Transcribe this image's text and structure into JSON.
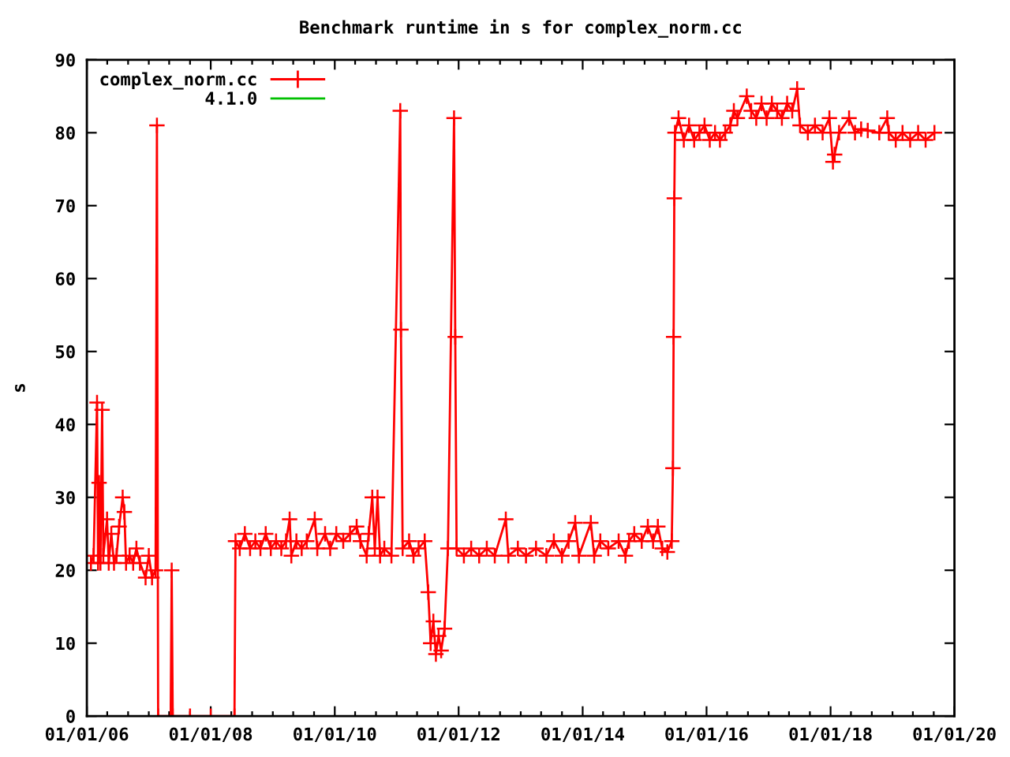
{
  "chart_data": {
    "type": "line",
    "title": "Benchmark runtime in s for complex_norm.cc",
    "ylabel": "s",
    "xlim": [
      "2006-01-01",
      "2020-01-01"
    ],
    "ylim": [
      0,
      90
    ],
    "yticks": [
      0,
      10,
      20,
      30,
      40,
      50,
      60,
      70,
      80,
      90
    ],
    "xticks": [
      {
        "value": "2006-01-01",
        "label": "01/01/06"
      },
      {
        "value": "2006-05-01",
        "label": null
      },
      {
        "value": "2006-09-01",
        "label": null
      },
      {
        "value": "2007-01-01",
        "label": null
      },
      {
        "value": "2007-05-01",
        "label": null
      },
      {
        "value": "2007-09-01",
        "label": null
      },
      {
        "value": "2008-01-01",
        "label": "01/01/08"
      },
      {
        "value": "2008-05-01",
        "label": null
      },
      {
        "value": "2008-09-01",
        "label": null
      },
      {
        "value": "2009-01-01",
        "label": null
      },
      {
        "value": "2009-05-01",
        "label": null
      },
      {
        "value": "2009-09-01",
        "label": null
      },
      {
        "value": "2010-01-01",
        "label": "01/01/10"
      },
      {
        "value": "2010-05-01",
        "label": null
      },
      {
        "value": "2010-09-01",
        "label": null
      },
      {
        "value": "2011-01-01",
        "label": null
      },
      {
        "value": "2011-05-01",
        "label": null
      },
      {
        "value": "2011-09-01",
        "label": null
      },
      {
        "value": "2012-01-01",
        "label": "01/01/12"
      },
      {
        "value": "2012-05-01",
        "label": null
      },
      {
        "value": "2012-09-01",
        "label": null
      },
      {
        "value": "2013-01-01",
        "label": null
      },
      {
        "value": "2013-05-01",
        "label": null
      },
      {
        "value": "2013-09-01",
        "label": null
      },
      {
        "value": "2014-01-01",
        "label": "01/01/14"
      },
      {
        "value": "2014-05-01",
        "label": null
      },
      {
        "value": "2014-09-01",
        "label": null
      },
      {
        "value": "2015-01-01",
        "label": null
      },
      {
        "value": "2015-05-01",
        "label": null
      },
      {
        "value": "2015-09-01",
        "label": null
      },
      {
        "value": "2016-01-01",
        "label": "01/01/16"
      },
      {
        "value": "2016-05-01",
        "label": null
      },
      {
        "value": "2016-09-01",
        "label": null
      },
      {
        "value": "2017-01-01",
        "label": null
      },
      {
        "value": "2017-05-01",
        "label": null
      },
      {
        "value": "2017-09-01",
        "label": null
      },
      {
        "value": "2018-01-01",
        "label": "01/01/18"
      },
      {
        "value": "2018-05-01",
        "label": null
      },
      {
        "value": "2018-09-01",
        "label": null
      },
      {
        "value": "2019-01-01",
        "label": null
      },
      {
        "value": "2019-05-01",
        "label": null
      },
      {
        "value": "2019-09-01",
        "label": null
      },
      {
        "value": "2020-01-01",
        "label": "01/01/20"
      }
    ],
    "legend": "top left",
    "marker": "cross",
    "line_style": "solid",
    "series": [
      {
        "name": "complex_norm.cc",
        "color": "#ff0000",
        "x": [
          "2006-01-25",
          "2006-02-10",
          "2006-03-02",
          "2006-03-08",
          "2006-03-14",
          "2006-03-22",
          "2006-04-01",
          "2006-04-08",
          "2006-04-30",
          "2006-05-10",
          "2006-05-25",
          "2006-06-10",
          "2006-06-25",
          "2006-07-10",
          "2006-07-31",
          "2006-08-10",
          "2006-08-20",
          "2006-09-10",
          "2006-10-01",
          "2006-10-20",
          "2006-11-10",
          "2006-12-13",
          "2007-01-01",
          "2007-01-20",
          "2007-02-10",
          "2007-02-18",
          "2007-02-25",
          "2007-05-10",
          "2007-05-16",
          "2007-05-22",
          "2007-09-01",
          "2008-01-01",
          "2008-05-20",
          "2008-05-26",
          "2008-06-20",
          "2008-07-20",
          "2008-08-20",
          "2008-09-20",
          "2008-10-20",
          "2008-11-20",
          "2008-12-20",
          "2009-01-20",
          "2009-02-20",
          "2009-03-20",
          "2009-04-10",
          "2009-04-20",
          "2009-05-20",
          "2009-06-20",
          "2009-07-20",
          "2009-09-05",
          "2009-09-20",
          "2009-11-05",
          "2009-12-05",
          "2010-01-10",
          "2010-02-20",
          "2010-04-01",
          "2010-05-10",
          "2010-06-01",
          "2010-07-08",
          "2010-07-20",
          "2010-08-10",
          "2010-08-25",
          "2010-09-10",
          "2010-09-25",
          "2010-10-20",
          "2010-12-01",
          "2011-01-22",
          "2011-01-26",
          "2011-02-05",
          "2011-03-15",
          "2011-04-10",
          "2011-05-10",
          "2011-06-15",
          "2011-07-06",
          "2011-07-20",
          "2011-08-05",
          "2011-08-20",
          "2011-09-05",
          "2011-09-20",
          "2011-10-10",
          "2011-10-30",
          "2011-12-05",
          "2011-12-12",
          "2011-12-20",
          "2012-02-01",
          "2012-03-15",
          "2012-05-01",
          "2012-06-15",
          "2012-08-01",
          "2012-10-05",
          "2012-10-20",
          "2012-12-15",
          "2013-02-01",
          "2013-04-01",
          "2013-06-01",
          "2013-07-15",
          "2013-09-01",
          "2013-10-10",
          "2013-11-18",
          "2013-12-10",
          "2014-02-18",
          "2014-03-10",
          "2014-04-15",
          "2014-06-01",
          "2014-08-01",
          "2014-09-10",
          "2014-10-01",
          "2014-11-01",
          "2014-12-15",
          "2015-01-20",
          "2015-02-20",
          "2015-03-20",
          "2015-04-15",
          "2015-05-15",
          "2015-06-10",
          "2015-06-17",
          "2015-06-21",
          "2015-06-25",
          "2015-06-29",
          "2015-07-20",
          "2015-08-20",
          "2015-09-20",
          "2015-10-20",
          "2015-11-20",
          "2015-12-20",
          "2016-01-20",
          "2016-02-20",
          "2016-03-20",
          "2016-04-20",
          "2016-05-20",
          "2016-06-10",
          "2016-07-01",
          "2016-08-25",
          "2016-09-20",
          "2016-10-20",
          "2016-11-20",
          "2016-12-20",
          "2017-01-20",
          "2017-02-20",
          "2017-03-20",
          "2017-04-20",
          "2017-05-20",
          "2017-06-18",
          "2017-07-05",
          "2017-08-20",
          "2017-10-01",
          "2017-11-15",
          "2017-12-25",
          "2018-01-15",
          "2018-01-25",
          "2018-02-20",
          "2018-04-20",
          "2018-05-25",
          "2018-06-30",
          "2018-08-08",
          "2018-10-15",
          "2018-12-01",
          "2018-12-10",
          "2019-01-20",
          "2019-03-01",
          "2019-04-15",
          "2019-06-01",
          "2019-07-15",
          "2019-09-05"
        ],
        "values": [
          21,
          22,
          43,
          21,
          32,
          21,
          42,
          22,
          27,
          21,
          25,
          21,
          22,
          26,
          30,
          28,
          21,
          22,
          21,
          23,
          21,
          19,
          22,
          19,
          20,
          81,
          0,
          0,
          20,
          0,
          0,
          0,
          0,
          24,
          23,
          25,
          23,
          24,
          23,
          25,
          23,
          24,
          23,
          24,
          27,
          22,
          24,
          23,
          24,
          27,
          23,
          25,
          23,
          25,
          24,
          25,
          26,
          24,
          22,
          25,
          30,
          23,
          30,
          22,
          23,
          22,
          83,
          53,
          23,
          24,
          22,
          23,
          24,
          17,
          10,
          13,
          8.5,
          11,
          9,
          12,
          23,
          82,
          52,
          23,
          22,
          23,
          22,
          23,
          22,
          27,
          22,
          23,
          22,
          23,
          22,
          24,
          22,
          24,
          26.5,
          22,
          26.5,
          22,
          24,
          23,
          24,
          22,
          24,
          25,
          24,
          26,
          24,
          26,
          23,
          22.5,
          24,
          34,
          52,
          71,
          80,
          82,
          79,
          81,
          79,
          80,
          81,
          79,
          80,
          79,
          80,
          81,
          83,
          82,
          85,
          83,
          82,
          84,
          82,
          84,
          83,
          82,
          84,
          83,
          86,
          81,
          80,
          81,
          80,
          82,
          76,
          77,
          80,
          82,
          80,
          80.5,
          80.3,
          80,
          82,
          80,
          79,
          80,
          79,
          80,
          79,
          80
        ]
      },
      {
        "name": "4.1.0",
        "color": "#00c000",
        "marker": "none"
      }
    ]
  }
}
